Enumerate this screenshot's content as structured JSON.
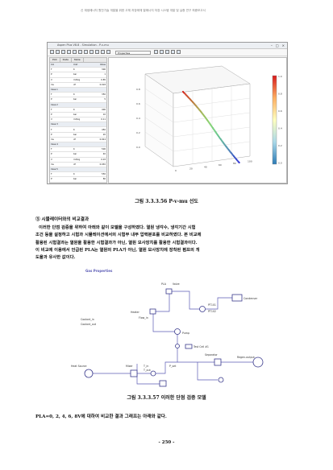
{
  "header": {
    "running_title": "신 재생에너지 원천기술 개발을 위한 고체 저장매체 열에너지 저장 시스템 개발 및 실증 연구 최종보고서"
  },
  "figure1": {
    "caption": "그림 3.3.3.56 P-v-mu 선도",
    "window_title": "Aspen Plus V8.8 - Simulation - P-v-mu",
    "toolbar_combo": "Properties",
    "panel_tabs": [
      "Plot",
      "Data",
      "Table"
    ],
    "table_rows": [
      {
        "cells": [
          "Col",
          "Unit",
          "Value"
        ],
        "group": true
      },
      {
        "cells": [
          "T",
          "K",
          "300"
        ],
        "group": false
      },
      {
        "cells": [
          "P",
          "bar",
          "1"
        ],
        "group": false
      },
      {
        "cells": [
          "V",
          "m3/kg",
          "0.85"
        ],
        "group": false
      },
      {
        "cells": [
          "mu",
          "cP",
          "0.018"
        ],
        "group": false
      },
      {
        "cells": [
          "Case 1",
          "",
          ""
        ],
        "group": true
      },
      {
        "cells": [
          "T",
          "K",
          "350"
        ],
        "group": false
      },
      {
        "cells": [
          "P",
          "bar",
          "5"
        ],
        "group": false
      },
      {
        "cells": [
          "Case 2",
          "",
          ""
        ],
        "group": true
      },
      {
        "cells": [
          "T",
          "K",
          "400"
        ],
        "group": false
      },
      {
        "cells": [
          "P",
          "bar",
          "10"
        ],
        "group": false
      },
      {
        "cells": [
          "V",
          "m3/kg",
          "0.11"
        ],
        "group": false
      },
      {
        "cells": [
          "Case 3",
          "",
          ""
        ],
        "group": true
      },
      {
        "cells": [
          "T",
          "K",
          "450"
        ],
        "group": false
      },
      {
        "cells": [
          "P",
          "bar",
          "20"
        ],
        "group": false
      },
      {
        "cells": [
          "mu",
          "cP",
          "0.024"
        ],
        "group": false
      },
      {
        "cells": [
          "Case 4",
          "",
          ""
        ],
        "group": true
      },
      {
        "cells": [
          "T",
          "K",
          "500"
        ],
        "group": false
      },
      {
        "cells": [
          "P",
          "bar",
          "40"
        ],
        "group": false
      },
      {
        "cells": [
          "V",
          "m3/kg",
          "0.03"
        ],
        "group": false
      },
      {
        "cells": [
          "mu",
          "cP",
          "0.030"
        ],
        "group": false
      },
      {
        "cells": [
          "Case 5",
          "",
          ""
        ],
        "group": true
      },
      {
        "cells": [
          "T",
          "K",
          "550"
        ],
        "group": false
      },
      {
        "cells": [
          "P",
          "bar",
          "80"
        ],
        "group": false
      },
      {
        "cells": [
          "V",
          "m3/kg",
          "0.01"
        ],
        "group": false
      },
      {
        "cells": [
          "mu",
          "cP",
          "0.036"
        ],
        "group": false
      },
      {
        "cells": [
          "Total",
          "",
          "26"
        ],
        "group": true
      },
      {
        "cells": [
          "",
          "",
          ""
        ],
        "group": false
      },
      {
        "cells": [
          "",
          "",
          ""
        ],
        "group": false
      }
    ],
    "plot_axis_ticks": [
      "0",
      "20",
      "40",
      "60",
      "80",
      "100"
    ],
    "plot_v_ticks": [
      "0.0",
      "0.2",
      "0.4",
      "0.6",
      "0.8"
    ],
    "colorbar_ticks": [
      "1.0",
      "0.8",
      "0.6",
      "0.4",
      "0.2",
      "0.0"
    ]
  },
  "section": {
    "heading": "③ 시뮬레이터와의 비교결과",
    "paragraph_lines": [
      "이러한 단점 검증을 위하여 아래와 같이 모델을 구성하였다. 열원 냉각수, 냉각기간 시험",
      "조건 등을 설정하고 시험과 시뮬레이션에서의 시험부 내부 압력분포를 비교하였다. 본 비교에",
      "활용된 시험결과는 열원을 활용한 시험결과가 아닌, 열원 모사장치를 활용한 시험결과이다.",
      "이 비교에 이용에서 언급된 PLA는 열원의 PLA가 아닌, 열원 모사장치에 장착된 펌프의 개",
      "도율과 유사한 값이다."
    ]
  },
  "figure2": {
    "caption": "그림 3.3.3.57 이러한 단점 검증 모델",
    "labels": {
      "gas_properties": "Gas Properties",
      "heater": "Heater",
      "coolant_in": "Coolant_in",
      "coolant_out": "Coolant_out",
      "pla": "PLA",
      "valve": "Valve",
      "sensor1": "PT101",
      "sensor2": "PT102",
      "flow_in": "Flow_in",
      "condenser": "Condenser",
      "test_cell": "Test Cell #1",
      "pump": "Pump",
      "mixer": "Mixer",
      "separator": "Separator",
      "regen": "Regen-output",
      "left_node": "Heat Source",
      "t_in": "T_in",
      "t_out": "T_out",
      "p_set": "P_set"
    },
    "colors": {
      "line": "#5b5bb5",
      "accent": "#b33a3a",
      "node": "#3a3a8c"
    }
  },
  "bottom_text": "PLA=0, 2, 4, 6, 8V에 대하여 비교한 결과 그래프는 아래와 같다.",
  "page_number": "- 250 -"
}
